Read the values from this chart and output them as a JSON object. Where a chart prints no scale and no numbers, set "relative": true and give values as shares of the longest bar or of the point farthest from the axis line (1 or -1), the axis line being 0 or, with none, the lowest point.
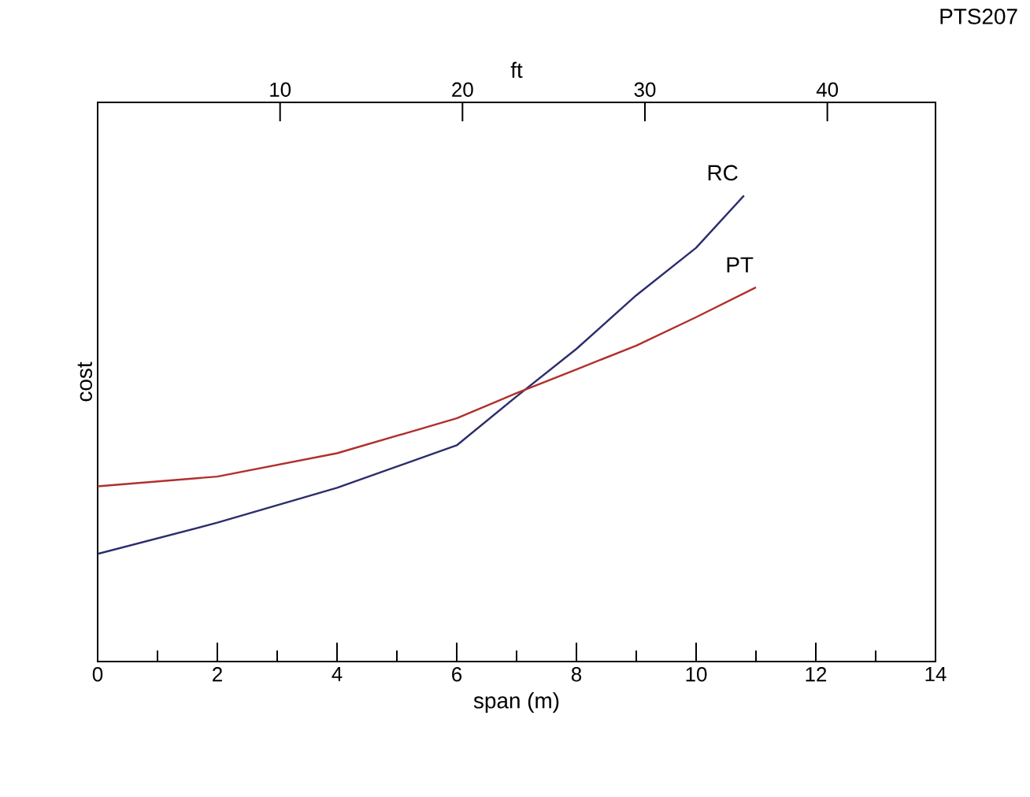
{
  "chart_data": {
    "type": "line",
    "relative": true,
    "xlabel": "span (m)",
    "ylabel": "cost",
    "x2label": "ft",
    "xlim": [
      0,
      14
    ],
    "xticks": [
      0,
      2,
      4,
      6,
      8,
      10,
      12,
      14
    ],
    "x2lim": [
      0,
      45.93
    ],
    "x2ticks": [
      10,
      20,
      30,
      40
    ],
    "annotations": [
      "PTS207"
    ],
    "series": [
      {
        "name": "RC",
        "color": "#2b2d6b",
        "x": [
          0,
          2,
          4,
          6,
          7,
          8,
          9,
          10,
          10.8
        ],
        "values": [
          0.231,
          0.298,
          0.373,
          0.464,
          0.569,
          0.671,
          0.786,
          0.888,
          1
        ]
      },
      {
        "name": "PT",
        "color": "#b0302c",
        "x": [
          0,
          2,
          4,
          6,
          7,
          8,
          9,
          10,
          11
        ],
        "values": [
          0.376,
          0.397,
          0.447,
          0.522,
          0.576,
          0.627,
          0.678,
          0.739,
          0.803
        ]
      }
    ]
  }
}
